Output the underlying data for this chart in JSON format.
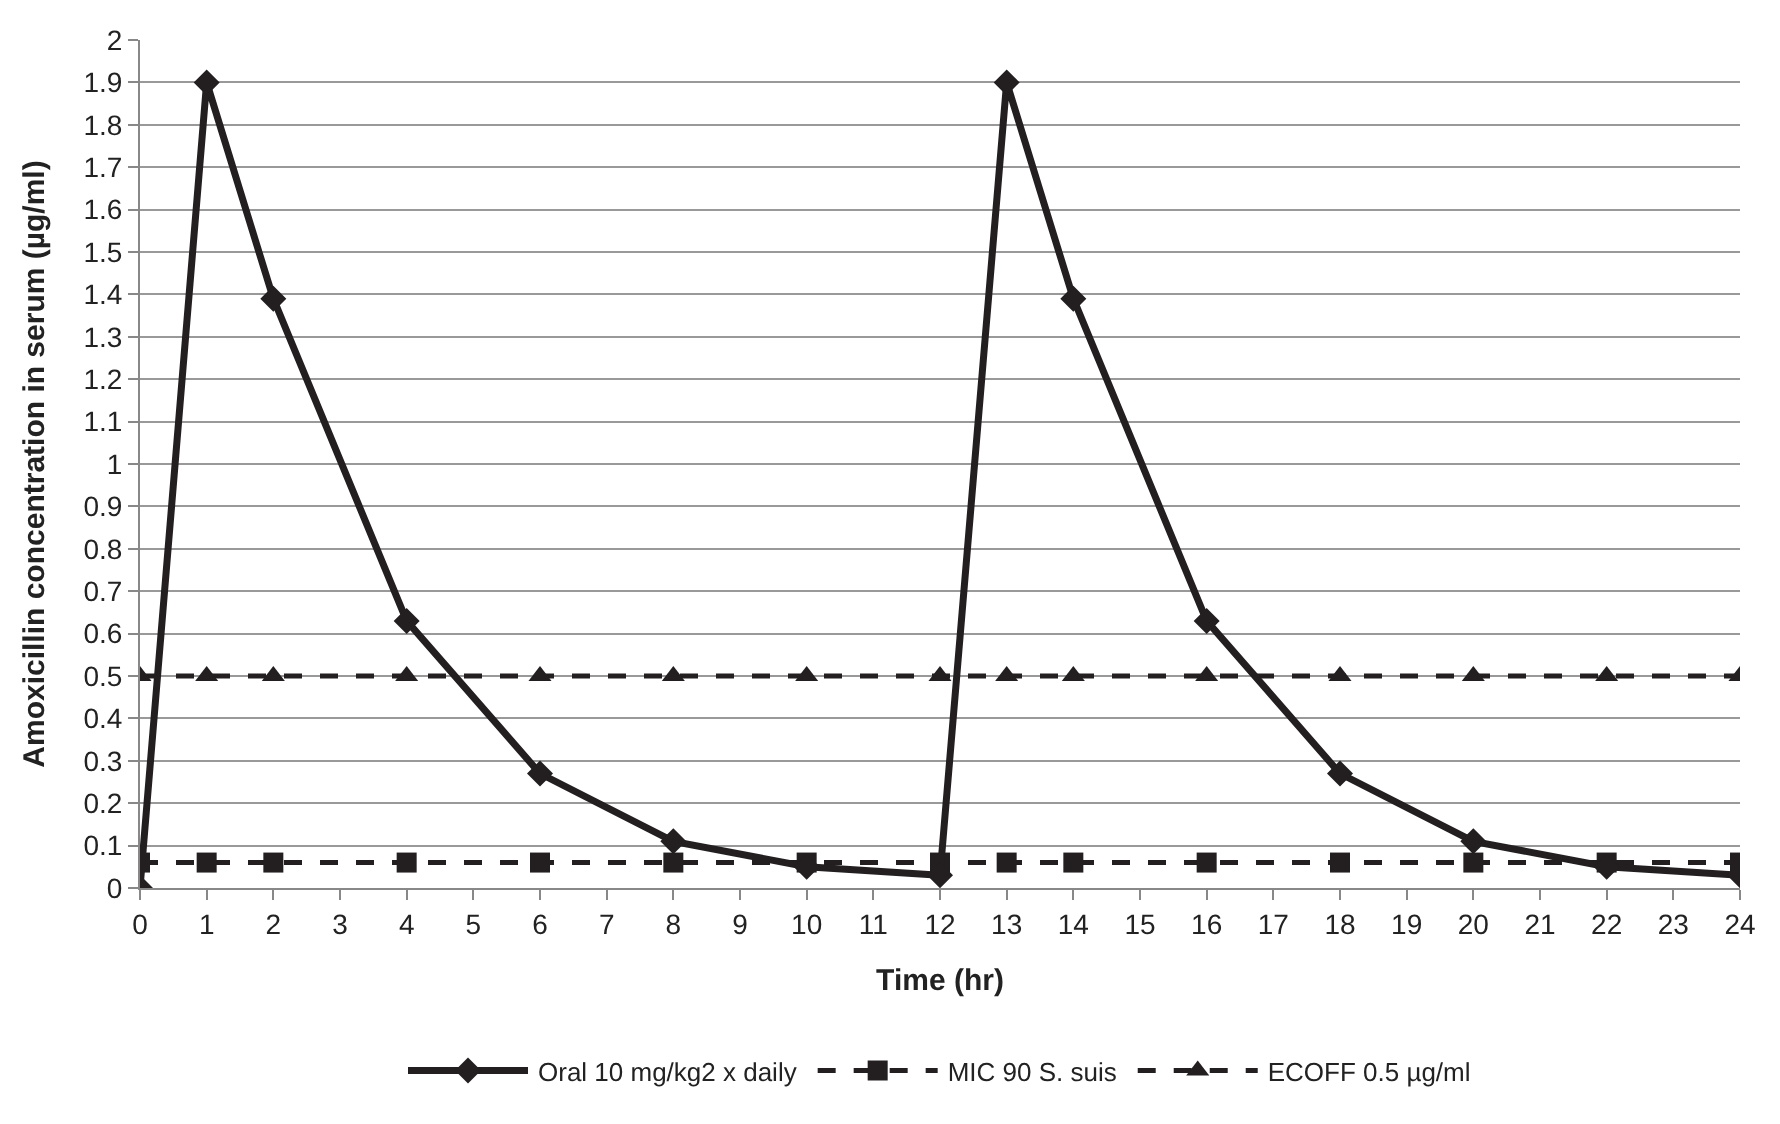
{
  "chart_data": {
    "type": "line",
    "xlabel": "Time (hr)",
    "ylabel": "Amoxicillin concentration in serum (µg/ml)",
    "x": [
      0,
      1,
      2,
      4,
      6,
      8,
      10,
      12,
      13,
      14,
      16,
      18,
      20,
      22,
      24
    ],
    "series": [
      {
        "name": "Oral 10 mg/kg2 x daily",
        "color": "#231f20",
        "values": [
          0,
          1.9,
          1.39,
          0.63,
          0.27,
          0.11,
          0.05,
          0.03,
          1.9,
          1.39,
          0.63,
          0.27,
          0.11,
          0.05,
          0.03
        ],
        "marker": "diamond",
        "line_style": "solid"
      },
      {
        "name": "MIC 90 S. suis",
        "color": "#231f20",
        "values": [
          0.06,
          0.06,
          0.06,
          0.06,
          0.06,
          0.06,
          0.06,
          0.06,
          0.06,
          0.06,
          0.06,
          0.06,
          0.06,
          0.06,
          0.06
        ],
        "marker": "square",
        "line_style": "dashed"
      },
      {
        "name": "ECOFF 0.5 µg/ml",
        "color": "#231f20",
        "values": [
          0.5,
          0.5,
          0.5,
          0.5,
          0.5,
          0.5,
          0.5,
          0.5,
          0.5,
          0.5,
          0.5,
          0.5,
          0.5,
          0.5,
          0.5
        ],
        "marker": "triangle",
        "line_style": "dashed"
      }
    ],
    "xlim": [
      0,
      24
    ],
    "xticks": [
      0,
      1,
      2,
      3,
      4,
      5,
      6,
      7,
      8,
      9,
      10,
      11,
      12,
      13,
      14,
      15,
      16,
      17,
      18,
      19,
      20,
      21,
      22,
      23,
      24
    ],
    "ylim": [
      0,
      2
    ],
    "yticks": [
      0,
      0.1,
      0.2,
      0.3,
      0.4,
      0.5,
      0.6,
      0.7,
      0.8,
      0.9,
      1,
      1.1,
      1.2,
      1.3,
      1.4,
      1.5,
      1.6,
      1.7,
      1.8,
      1.9,
      2
    ],
    "grid": "y",
    "legend": "bottom"
  }
}
